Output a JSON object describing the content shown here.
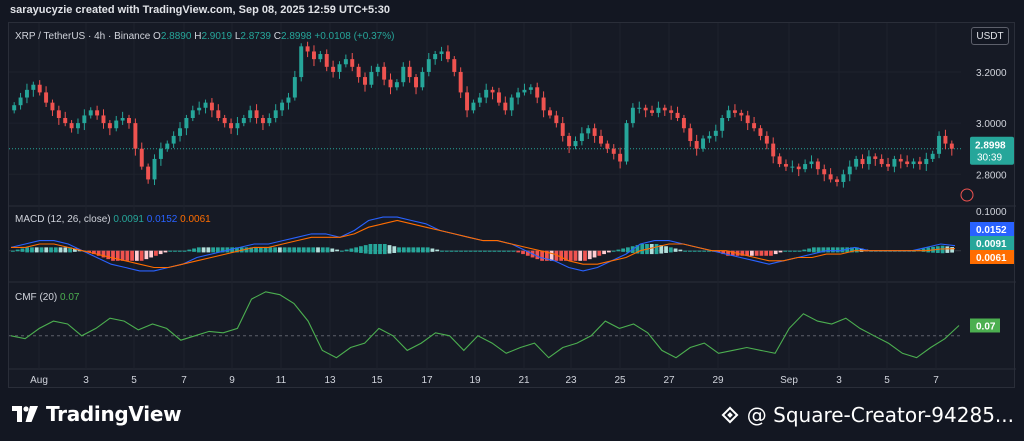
{
  "header": {
    "created_text": "sarayucyzie created with TradingView.com, Sep 08, 2025 12:59 UTC+5:30"
  },
  "symbol": {
    "title": "XRP / TetherUS · 4h · Binance",
    "o_label": "O",
    "o_value": "2.8890",
    "h_label": "H",
    "h_value": "2.9019",
    "l_label": "L",
    "l_value": "2.8739",
    "c_label": "C",
    "c_value": "2.8998",
    "change": "+0.0108 (+0.37%)"
  },
  "currency_button": "USDT",
  "price_scale": {
    "labels": [
      "3.2000",
      "3.0000",
      "2.8000",
      "0.1000"
    ]
  },
  "last_price": {
    "value": "2.8998",
    "countdown": "30:39"
  },
  "macd": {
    "title": "MACD (12, 26, close)",
    "hist_value": "0.0091",
    "macd_value": "0.0152",
    "signal_value": "0.0061",
    "badges": [
      "0.0152",
      "0.0091",
      "0.0061"
    ]
  },
  "cmf": {
    "title": "CMF (20)",
    "value": "0.07",
    "badge": "0.07"
  },
  "time_axis": {
    "labels": [
      "Aug",
      "3",
      "5",
      "7",
      "9",
      "11",
      "13",
      "15",
      "17",
      "19",
      "21",
      "23",
      "25",
      "27",
      "29",
      "Sep",
      "3",
      "5",
      "7"
    ]
  },
  "footer": {
    "brand": "TradingView",
    "creator": "@ Square-Creator-94285..."
  },
  "colors": {
    "up": "#26a69a",
    "down": "#ef5350",
    "macd_line": "#2962ff",
    "signal_line": "#ff6d00",
    "cmf_line": "#4caf50",
    "background": "#131722"
  },
  "chart_data": [
    {
      "type": "candlestick",
      "title": "XRP / TetherUS · 4h · Binance",
      "x_ticks": [
        "Aug",
        "3",
        "5",
        "7",
        "9",
        "11",
        "13",
        "15",
        "17",
        "19",
        "21",
        "23",
        "25",
        "27",
        "29",
        "Sep",
        "3",
        "5",
        "7"
      ],
      "y_ticks": [
        "2.8000",
        "3.0000",
        "3.2000"
      ],
      "ylim": [
        2.68,
        3.36
      ],
      "grid": true,
      "close": [
        3.07,
        3.1,
        3.13,
        3.15,
        3.12,
        3.08,
        3.05,
        3.02,
        3.0,
        2.98,
        3.0,
        3.03,
        3.05,
        3.03,
        3.0,
        2.98,
        3.01,
        3.02,
        3.0,
        2.9,
        2.83,
        2.78,
        2.86,
        2.9,
        2.92,
        2.95,
        2.98,
        3.02,
        3.05,
        3.06,
        3.08,
        3.05,
        3.02,
        3.0,
        2.98,
        3.0,
        3.02,
        3.05,
        3.02,
        3.0,
        3.02,
        3.05,
        3.08,
        3.1,
        3.18,
        3.3,
        3.28,
        3.25,
        3.27,
        3.22,
        3.2,
        3.23,
        3.25,
        3.22,
        3.18,
        3.15,
        3.2,
        3.22,
        3.17,
        3.14,
        3.16,
        3.22,
        3.18,
        3.14,
        3.2,
        3.25,
        3.27,
        3.28,
        3.25,
        3.2,
        3.12,
        3.05,
        3.08,
        3.1,
        3.13,
        3.12,
        3.08,
        3.05,
        3.1,
        3.12,
        3.13,
        3.14,
        3.1,
        3.05,
        3.03,
        3.0,
        2.95,
        2.91,
        2.93,
        2.96,
        2.98,
        2.95,
        2.92,
        2.9,
        2.88,
        2.85,
        3.0,
        3.06,
        3.06,
        3.05,
        3.04,
        3.06,
        3.05,
        3.04,
        3.02,
        2.98,
        2.93,
        2.9,
        2.94,
        2.95,
        2.97,
        3.02,
        3.05,
        3.04,
        3.03,
        3.0,
        2.98,
        2.95,
        2.92,
        2.87,
        2.84,
        2.83,
        2.83,
        2.82,
        2.84,
        2.85,
        2.82,
        2.8,
        2.78,
        2.77,
        2.8,
        2.83,
        2.86,
        2.84,
        2.87,
        2.86,
        2.84,
        2.83,
        2.86,
        2.85,
        2.84,
        2.85,
        2.84,
        2.86,
        2.88,
        2.95,
        2.92,
        2.9
      ]
    },
    {
      "type": "line",
      "title": "MACD (12, 26, close)",
      "series": [
        {
          "name": "MACD",
          "values": [
            0.01,
            0.02,
            0.03,
            0.03,
            0.02,
            0.0,
            -0.02,
            -0.04,
            -0.05,
            -0.06,
            -0.06,
            -0.05,
            -0.04,
            -0.02,
            -0.01,
            0.0,
            0.01,
            0.02,
            0.02,
            0.03,
            0.04,
            0.05,
            0.05,
            0.04,
            0.06,
            0.09,
            0.1,
            0.1,
            0.09,
            0.08,
            0.06,
            0.05,
            0.04,
            0.03,
            0.03,
            0.02,
            0.0,
            -0.02,
            -0.03,
            -0.05,
            -0.06,
            -0.05,
            -0.03,
            -0.01,
            0.02,
            0.03,
            0.03,
            0.02,
            0.01,
            0.0,
            -0.01,
            -0.02,
            -0.03,
            -0.04,
            -0.03,
            -0.02,
            -0.01,
            0.0,
            0.0,
            0.01,
            0.0,
            0.0,
            0.0,
            0.0,
            0.01,
            0.02,
            0.015
          ]
        },
        {
          "name": "Signal",
          "values": [
            0.01,
            0.01,
            0.02,
            0.02,
            0.01,
            0.0,
            -0.01,
            -0.02,
            -0.03,
            -0.04,
            -0.05,
            -0.05,
            -0.04,
            -0.03,
            -0.02,
            -0.01,
            0.0,
            0.01,
            0.01,
            0.02,
            0.03,
            0.04,
            0.04,
            0.04,
            0.05,
            0.07,
            0.08,
            0.09,
            0.08,
            0.07,
            0.06,
            0.05,
            0.04,
            0.03,
            0.03,
            0.02,
            0.01,
            0.0,
            -0.01,
            -0.03,
            -0.04,
            -0.04,
            -0.03,
            -0.02,
            0.0,
            0.01,
            0.02,
            0.02,
            0.01,
            0.0,
            0.0,
            -0.01,
            -0.02,
            -0.03,
            -0.03,
            -0.02,
            -0.02,
            -0.01,
            -0.01,
            0.0,
            0.0,
            0.0,
            0.0,
            0.0,
            0.0,
            0.005,
            0.006
          ]
        }
      ],
      "last_values": {
        "MACD": 0.0152,
        "Signal": 0.0061,
        "Histogram": 0.0091
      }
    },
    {
      "type": "line",
      "title": "CMF (20)",
      "series": [
        {
          "name": "CMF",
          "values": [
            0.0,
            -0.02,
            0.05,
            0.1,
            0.08,
            0.0,
            0.05,
            0.12,
            0.1,
            0.04,
            0.08,
            0.05,
            -0.03,
            0.0,
            0.03,
            0.02,
            0.05,
            0.25,
            0.3,
            0.28,
            0.22,
            0.1,
            -0.1,
            -0.15,
            -0.08,
            -0.05,
            0.05,
            0.0,
            -0.1,
            -0.05,
            0.02,
            0.0,
            -0.1,
            0.0,
            -0.05,
            -0.12,
            -0.08,
            -0.05,
            -0.15,
            -0.08,
            -0.05,
            0.0,
            0.1,
            0.05,
            0.08,
            0.02,
            -0.1,
            -0.15,
            -0.08,
            -0.05,
            -0.12,
            -0.1,
            -0.08,
            -0.1,
            -0.12,
            0.05,
            0.15,
            0.1,
            0.08,
            0.12,
            0.05,
            0.0,
            -0.05,
            -0.12,
            -0.15,
            -0.08,
            -0.02,
            0.07
          ]
        }
      ],
      "last_value": 0.07
    }
  ]
}
